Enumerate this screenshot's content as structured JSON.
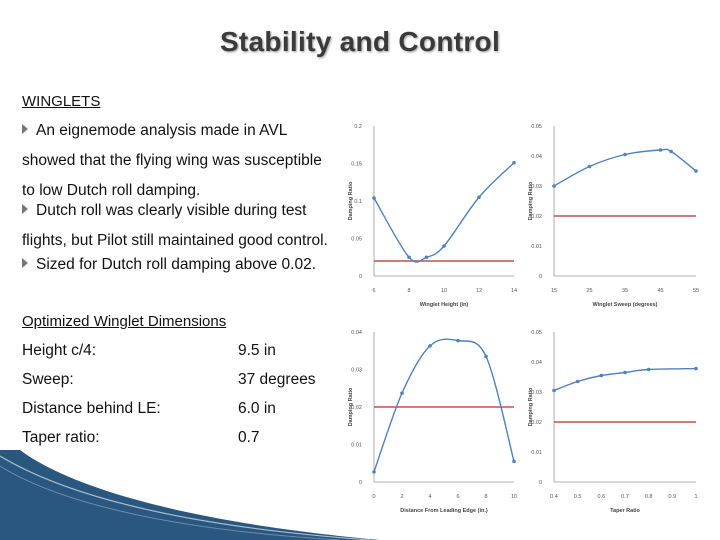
{
  "title": "Stability and Control",
  "winglets": {
    "heading": "WINGLETS",
    "bullets": [
      {
        "first": "An eignemode analysis made in AVL",
        "rest": [
          "showed that the flying wing was susceptible",
          "to low Dutch roll damping."
        ]
      },
      {
        "first": "Dutch roll was clearly visible during test",
        "rest": [
          "flights, but Pilot still maintained good control."
        ]
      },
      {
        "first": "Sized for Dutch roll damping above 0.02.",
        "rest": []
      }
    ]
  },
  "dimensions": {
    "heading": "Optimized Winglet Dimensions",
    "rows": [
      {
        "label": "Height  c/4:",
        "value": "9.5 in"
      },
      {
        "label": "Sweep:",
        "value": "37 degrees"
      },
      {
        "label": "Distance behind LE:",
        "value": "6.0 in"
      },
      {
        "label": "Taper ratio:",
        "value": "0.7"
      }
    ]
  },
  "colors": {
    "series": "#4f81bd",
    "threshold": "#c0504d",
    "title": "#3a3a3a",
    "accent": "#1f4e79"
  },
  "chart_data": [
    {
      "type": "line",
      "xlabel": "Winglet Height (in)",
      "ylabel": "Damping Ratio",
      "x": [
        6,
        8,
        9,
        10,
        12,
        14
      ],
      "y": [
        0.104,
        0.025,
        0.025,
        0.04,
        0.105,
        0.151
      ],
      "xlim": [
        6,
        14
      ],
      "ylim": [
        0,
        0.2
      ],
      "xticks": [
        "6",
        "8",
        "10",
        "12",
        "14"
      ],
      "yticks": [
        "0",
        "0.05",
        "0.1",
        "0.15",
        "0.2"
      ],
      "threshold": 0.02
    },
    {
      "type": "line",
      "xlabel": "Winglet Sweep (degrees)",
      "ylabel": "Damping Ratio",
      "x": [
        15,
        25,
        35,
        45,
        48,
        55
      ],
      "y": [
        0.03,
        0.0365,
        0.0405,
        0.042,
        0.0415,
        0.035
      ],
      "xlim": [
        15,
        55
      ],
      "ylim": [
        0,
        0.05
      ],
      "xticks": [
        "15",
        "25",
        "35",
        "45",
        "55"
      ],
      "yticks": [
        "0",
        "0.01",
        "0.02",
        "0.03",
        "0.04",
        "0.05"
      ],
      "threshold": 0.02
    },
    {
      "type": "line",
      "xlabel": "Distance From Leading Edge (in.)",
      "ylabel": "Damping Ratio",
      "x": [
        0,
        2,
        4,
        6,
        8,
        10
      ],
      "y": [
        0.0027,
        0.0237,
        0.0363,
        0.0377,
        0.0335,
        0.0055
      ],
      "xlim": [
        0,
        10
      ],
      "ylim": [
        0,
        0.04
      ],
      "xticks": [
        "0",
        "2",
        "4",
        "6",
        "8",
        "10"
      ],
      "yticks": [
        "0",
        "0.01",
        "0.02",
        "0.03",
        "0.04"
      ],
      "threshold": 0.02
    },
    {
      "type": "line",
      "xlabel": "Taper Ratio",
      "ylabel": "Damping Ratio",
      "x": [
        0.4,
        0.5,
        0.6,
        0.7,
        0.8,
        1.0
      ],
      "y": [
        0.0305,
        0.0335,
        0.0355,
        0.0365,
        0.0375,
        0.0378
      ],
      "xlim": [
        0.4,
        1.0
      ],
      "ylim": [
        0,
        0.05
      ],
      "xticks": [
        "0.4",
        "0.5",
        "0.6",
        "0.7",
        "0.8",
        "0.9",
        "1"
      ],
      "yticks": [
        "0",
        "0.01",
        "0.02",
        "0.03",
        "0.04",
        "0.05"
      ],
      "threshold": 0.02
    }
  ]
}
